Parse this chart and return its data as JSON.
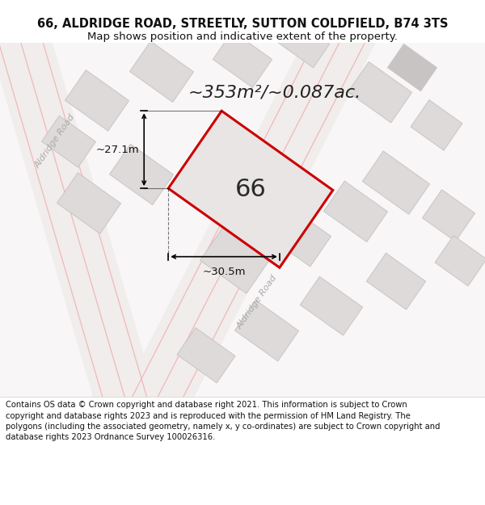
{
  "title_line1": "66, ALDRIDGE ROAD, STREETLY, SUTTON COLDFIELD, B74 3TS",
  "title_line2": "Map shows position and indicative extent of the property.",
  "area_text": "~353m²/~0.087ac.",
  "property_number": "66",
  "dim_width": "~30.5m",
  "dim_height": "~27.1m",
  "footer_text": "Contains OS data © Crown copyright and database right 2021. This information is subject to Crown copyright and database rights 2023 and is reproduced with the permission of HM Land Registry. The polygons (including the associated geometry, namely x, y co-ordinates) are subject to Crown copyright and database rights 2023 Ordnance Survey 100026316.",
  "map_bg": "#f7f5f5",
  "road_bg": "#f0edec",
  "block_fill": "#dedad9",
  "block_edge": "#c8c5c5",
  "road_stripe": "#f0b8b8",
  "prop_fill": "#e8e5e4",
  "prop_edge": "#cc0000",
  "title_fontsize": 10.5,
  "subtitle_fontsize": 9.5,
  "footer_fontsize": 7.2,
  "area_fontsize": 16,
  "prop_num_fontsize": 22,
  "road_label_fontsize": 8
}
